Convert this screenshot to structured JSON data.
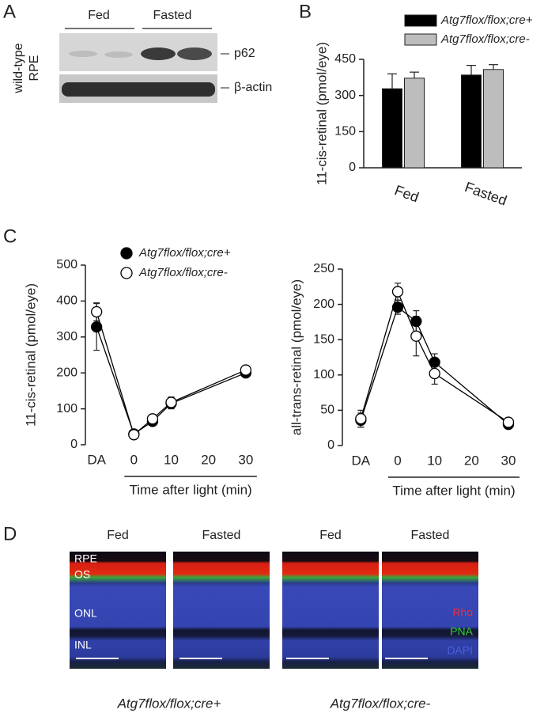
{
  "panel_labels": [
    "A",
    "B",
    "C",
    "D"
  ],
  "blot": {
    "ylabel": [
      "wild-type",
      "RPE"
    ],
    "groups": [
      "Fed",
      "Fasted"
    ],
    "bands": [
      "p62",
      "β-actin"
    ]
  },
  "chart_data": [
    {
      "type": "bar",
      "ylabel": "11-cis-retinal (pmol/eye)",
      "categories": [
        "Fed",
        "Fasted"
      ],
      "series": [
        {
          "name": "Atg7flox/flox;cre+",
          "color": "#000000",
          "values": [
            328,
            385
          ],
          "errors": [
            62,
            40
          ]
        },
        {
          "name": "Atg7flox/flox;cre-",
          "color": "#bdbdbd",
          "values": [
            372,
            408
          ],
          "errors": [
            25,
            20
          ]
        }
      ],
      "ylim": [
        0,
        450
      ],
      "yticks": [
        0,
        150,
        300,
        450
      ],
      "legend": "top"
    },
    {
      "type": "line",
      "ylabel": "11-cis-retinal (pmol/eye)",
      "xlabel": "Time after light (min)",
      "x": [
        -10,
        0,
        5,
        10,
        30
      ],
      "series": [
        {
          "name": "Atg7flox/flox;cre+",
          "color": "#000000",
          "marker_fill": "#000000",
          "values": [
            328,
            30,
            65,
            115,
            200
          ],
          "errors": [
            65,
            3,
            8,
            15,
            5
          ]
        },
        {
          "name": "Atg7flox/flox;cre-",
          "color": "#000000",
          "marker_fill": "#ffffff",
          "values": [
            370,
            28,
            72,
            118,
            208
          ],
          "errors": [
            25,
            3,
            6,
            15,
            5
          ]
        }
      ],
      "xlim": [
        -13,
        33
      ],
      "xticks": [
        {
          "value": -10,
          "label": "DA"
        },
        0,
        10,
        20,
        30
      ],
      "ylim": [
        0,
        500
      ],
      "yticks": [
        0,
        100,
        200,
        300,
        400,
        500
      ],
      "legend": "top"
    },
    {
      "type": "line",
      "ylabel": "all-trans-retinal (pmol/eye)",
      "xlabel": "Time after light (min)",
      "x": [
        -10,
        0,
        5,
        10,
        30
      ],
      "series": [
        {
          "color": "#000000",
          "marker_fill": "#000000",
          "values": [
            36,
            196,
            176,
            118,
            30
          ],
          "errors": [
            10,
            10,
            15,
            12,
            3
          ]
        },
        {
          "color": "#000000",
          "marker_fill": "#ffffff",
          "values": [
            38,
            218,
            155,
            102,
            33
          ],
          "errors": [
            12,
            12,
            28,
            15,
            3
          ]
        }
      ],
      "xlim": [
        -15,
        33
      ],
      "xticks": [
        {
          "value": -10,
          "label": "DA"
        },
        0,
        10,
        20,
        30
      ],
      "ylim": [
        0,
        250
      ],
      "yticks": [
        0,
        50,
        100,
        150,
        200,
        250
      ]
    }
  ],
  "microscopy": {
    "columns": [
      "Fed",
      "Fasted",
      "Fed",
      "Fasted"
    ],
    "layers": [
      "RPE",
      "OS",
      "ONL",
      "INL"
    ],
    "stains": [
      "Rho",
      "PNA",
      "DAPI"
    ],
    "genotypes": [
      "Atg7flox/flox;cre+",
      "Atg7flox/flox;cre-"
    ]
  }
}
